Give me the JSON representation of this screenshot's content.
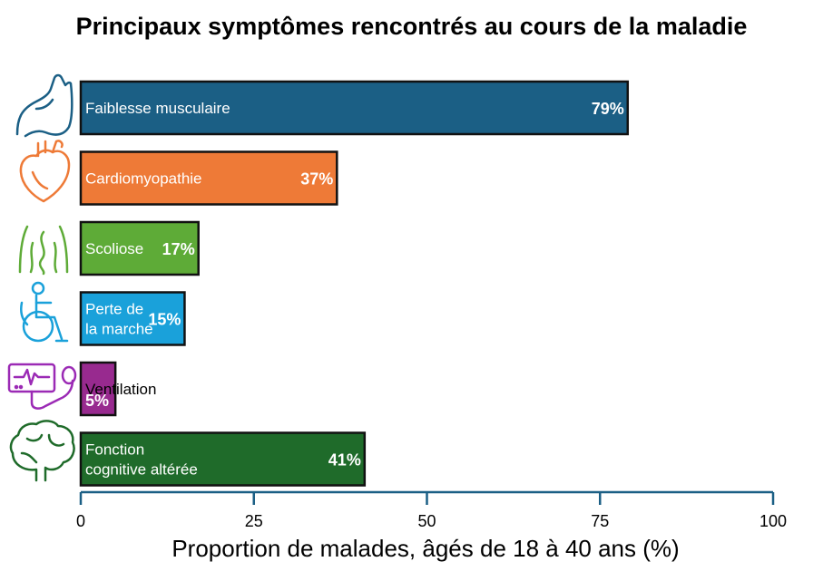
{
  "chart_data": {
    "type": "bar",
    "orientation": "horizontal",
    "title": "Principaux symptômes rencontrés au cours de la maladie",
    "xlabel": "Proportion de malades, âgés de 18 à 40 ans (%)",
    "xlim": [
      0,
      100
    ],
    "xticks": [
      "0",
      "25",
      "50",
      "75",
      "100"
    ],
    "grid": false,
    "categories": [
      {
        "label": [
          "Faiblesse musculaire"
        ],
        "value": 79,
        "value_label": "79%",
        "color": "#1b5f85",
        "text_color": "#ffffff",
        "icon": "muscle-arm-icon",
        "icon_color": "#1b5f85"
      },
      {
        "label": [
          "Cardiomyopathie"
        ],
        "value": 37,
        "value_label": "37%",
        "color": "#ee7a37",
        "text_color": "#ffffff",
        "icon": "heart-icon",
        "icon_color": "#ee7a37"
      },
      {
        "label": [
          "Scoliose"
        ],
        "value": 17,
        "value_label": "17%",
        "color": "#5eab37",
        "text_color": "#ffffff",
        "icon": "spine-back-icon",
        "icon_color": "#5eab37"
      },
      {
        "label": [
          "Perte de",
          "la marche"
        ],
        "value": 15,
        "value_label": "15%",
        "color": "#1aa1da",
        "text_color": "#ffffff",
        "icon": "wheelchair-icon",
        "icon_color": "#1aa1da"
      },
      {
        "label": [
          "Ventilation"
        ],
        "value": 5,
        "value_label": "5%",
        "color": "#982a8f",
        "text_color": "#000000",
        "icon": "ventilator-icon",
        "icon_color": "#9b2ab5"
      },
      {
        "label": [
          "Fonction",
          "cognitive altérée"
        ],
        "value": 41,
        "value_label": "41%",
        "color": "#1f6b2a",
        "text_color": "#ffffff",
        "icon": "brain-icon",
        "icon_color": "#1f6b2a"
      }
    ]
  }
}
